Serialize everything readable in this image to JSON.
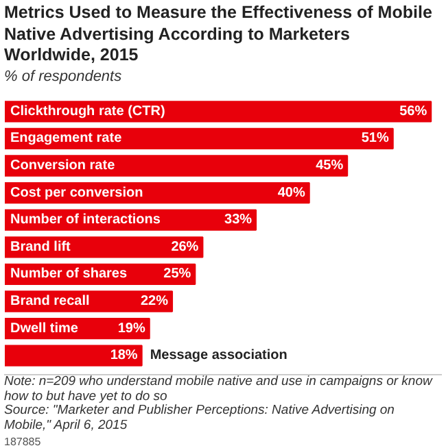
{
  "chart_data": {
    "type": "bar",
    "orientation": "horizontal",
    "title": "Metrics Used to Measure the Effectiveness of Mobile Native Advertising According to Marketers Worldwide, 2015",
    "subtitle": "% of respondents",
    "categories": [
      "Clickthrough rate (CTR)",
      "Engagement rate",
      "Conversion rate",
      "Cost per conversion",
      "Number of interactions",
      "Brand lift",
      "Number of shares",
      "Brand recall",
      "Dwell time",
      "Message association"
    ],
    "values": [
      56,
      51,
      45,
      40,
      33,
      26,
      25,
      22,
      19,
      18
    ],
    "value_labels": [
      "56%",
      "51%",
      "45%",
      "40%",
      "33%",
      "26%",
      "25%",
      "22%",
      "19%",
      "18%"
    ],
    "color": "#e8000b",
    "annotations": [
      "Note: n=209 who understand mobile native and use in campaigns or know how to but have yet to do so",
      "Source: \"Marketer and Publisher Perceptions: Native Advertising on Mobile,\" April 6, 2015",
      "187885"
    ]
  }
}
